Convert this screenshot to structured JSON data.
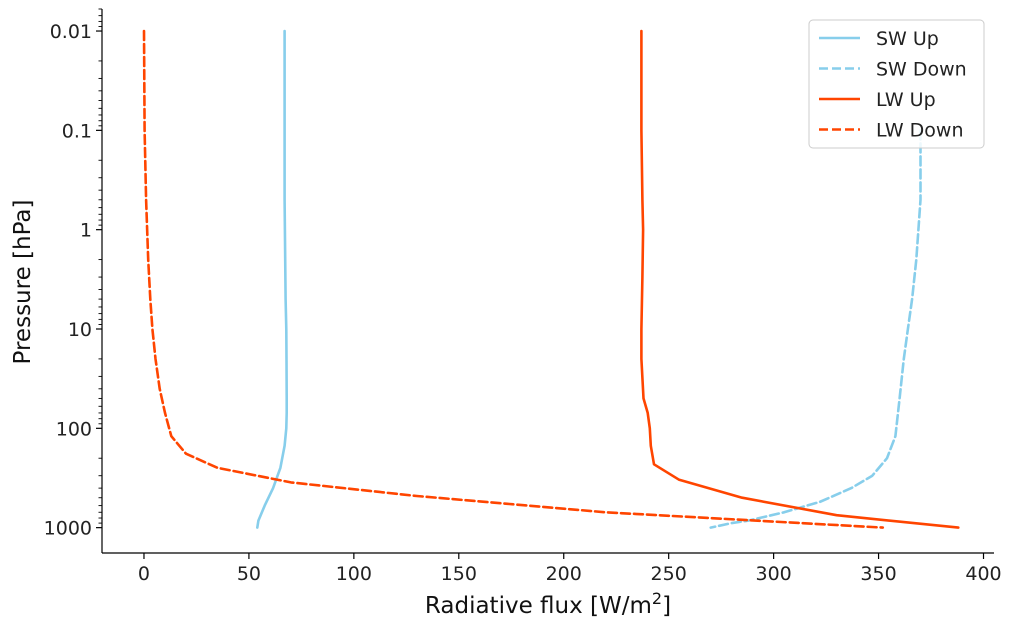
{
  "chart_data": {
    "type": "line",
    "xlabel": "Radiative flux [W/m",
    "xlabel_sup": "2",
    "xlabel_end": "]",
    "ylabel": "Pressure [hPa]",
    "xlim": [
      -20,
      405
    ],
    "ylim": [
      1800,
      0.006
    ],
    "yscale": "log",
    "x_ticks": [
      0,
      50,
      100,
      150,
      200,
      250,
      300,
      350,
      400
    ],
    "x_tick_labels": [
      "0",
      "50",
      "100",
      "150",
      "200",
      "250",
      "300",
      "350",
      "400"
    ],
    "y_ticks": [
      0.01,
      0.1,
      1,
      10,
      100,
      1000
    ],
    "y_tick_labels": [
      "0.01",
      "0.1",
      "1",
      "10",
      "100",
      "1000"
    ],
    "grid": false,
    "legend_position": "top-right",
    "series": [
      {
        "name": "SW Up",
        "color": "#87ceeb",
        "dash": "solid",
        "x": [
          67,
          67,
          67,
          67.3,
          67.5,
          67.8,
          67.9,
          68,
          68,
          67.8,
          67,
          65,
          61.5,
          57.5,
          54.5,
          54
        ],
        "y": [
          0.01,
          0.1,
          0.5,
          2,
          5,
          10,
          20,
          50,
          70,
          100,
          150,
          250,
          400,
          600,
          850,
          1000
        ]
      },
      {
        "name": "SW Down",
        "color": "#87ceeb",
        "dash": "dashed",
        "x": [
          370,
          370,
          368,
          366,
          364,
          362,
          360,
          358,
          354,
          347,
          337,
          322,
          305,
          288,
          280,
          270
        ],
        "y": [
          0.1,
          0.5,
          2,
          5,
          10,
          20,
          50,
          120,
          200,
          300,
          400,
          550,
          700,
          850,
          900,
          1000
        ]
      },
      {
        "name": "LW Up",
        "color": "#ff4500",
        "dash": "solid",
        "x": [
          237,
          237,
          237.5,
          237.8,
          237.5,
          237,
          237,
          238,
          240,
          241,
          241.5,
          243,
          255,
          285,
          330,
          388
        ],
        "y": [
          0.01,
          0.1,
          0.5,
          1,
          3,
          10,
          20,
          50,
          70,
          100,
          150,
          230,
          330,
          500,
          750,
          1000
        ]
      },
      {
        "name": "LW Down",
        "color": "#ff4500",
        "dash": "dashed",
        "x": [
          0,
          0.3,
          1,
          2,
          3,
          4,
          5.5,
          7.5,
          10,
          13,
          20,
          35,
          70,
          130,
          220,
          352
        ],
        "y": [
          0.01,
          0.1,
          0.5,
          2,
          5,
          10,
          20,
          40,
          70,
          120,
          180,
          250,
          350,
          480,
          700,
          1000
        ]
      }
    ]
  }
}
